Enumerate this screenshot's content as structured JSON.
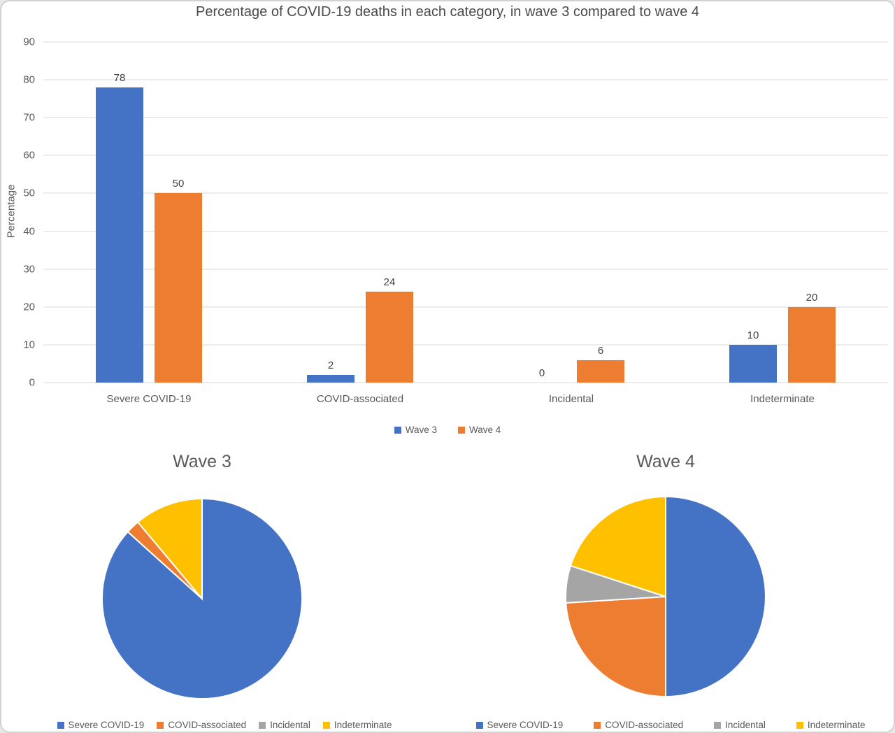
{
  "colors": {
    "wave3_blue": "#4472C4",
    "wave4_orange": "#ED7D31",
    "incidental_gray": "#A5A5A5",
    "indeterminate_yellow": "#FFC000",
    "gridline": "#D9D9D9"
  },
  "chart_data": [
    {
      "type": "bar",
      "title": "Percentage of COVID-19 deaths in each category, in wave 3 compared to wave 4",
      "xlabel": "",
      "ylabel": "Percentage",
      "ylim": [
        0,
        90
      ],
      "yticks": [
        0,
        10,
        20,
        30,
        40,
        50,
        60,
        70,
        80,
        90
      ],
      "grid": true,
      "data_labels": true,
      "legend_position": "bottom",
      "categories": [
        "Severe COVID-19",
        "COVID-associated",
        "Incidental",
        "Indeterminate"
      ],
      "series": [
        {
          "name": "Wave 3",
          "color": "#4472C4",
          "values": [
            78,
            2,
            0,
            10
          ]
        },
        {
          "name": "Wave 4",
          "color": "#ED7D31",
          "values": [
            50,
            24,
            6,
            20
          ]
        }
      ]
    },
    {
      "type": "pie",
      "title": "Wave 3",
      "labels": [
        "Severe COVID-19",
        "COVID-associated",
        "Incidental",
        "Indeterminate"
      ],
      "values": [
        78,
        2,
        0,
        10
      ],
      "colors": [
        "#4472C4",
        "#ED7D31",
        "#A5A5A5",
        "#FFC000"
      ],
      "legend_position": "bottom"
    },
    {
      "type": "pie",
      "title": "Wave 4",
      "labels": [
        "Severe COVID-19",
        "COVID-associated",
        "Incidental",
        "Indeterminate"
      ],
      "values": [
        50,
        24,
        6,
        20
      ],
      "colors": [
        "#4472C4",
        "#ED7D31",
        "#A5A5A5",
        "#FFC000"
      ],
      "legend_position": "bottom"
    }
  ]
}
